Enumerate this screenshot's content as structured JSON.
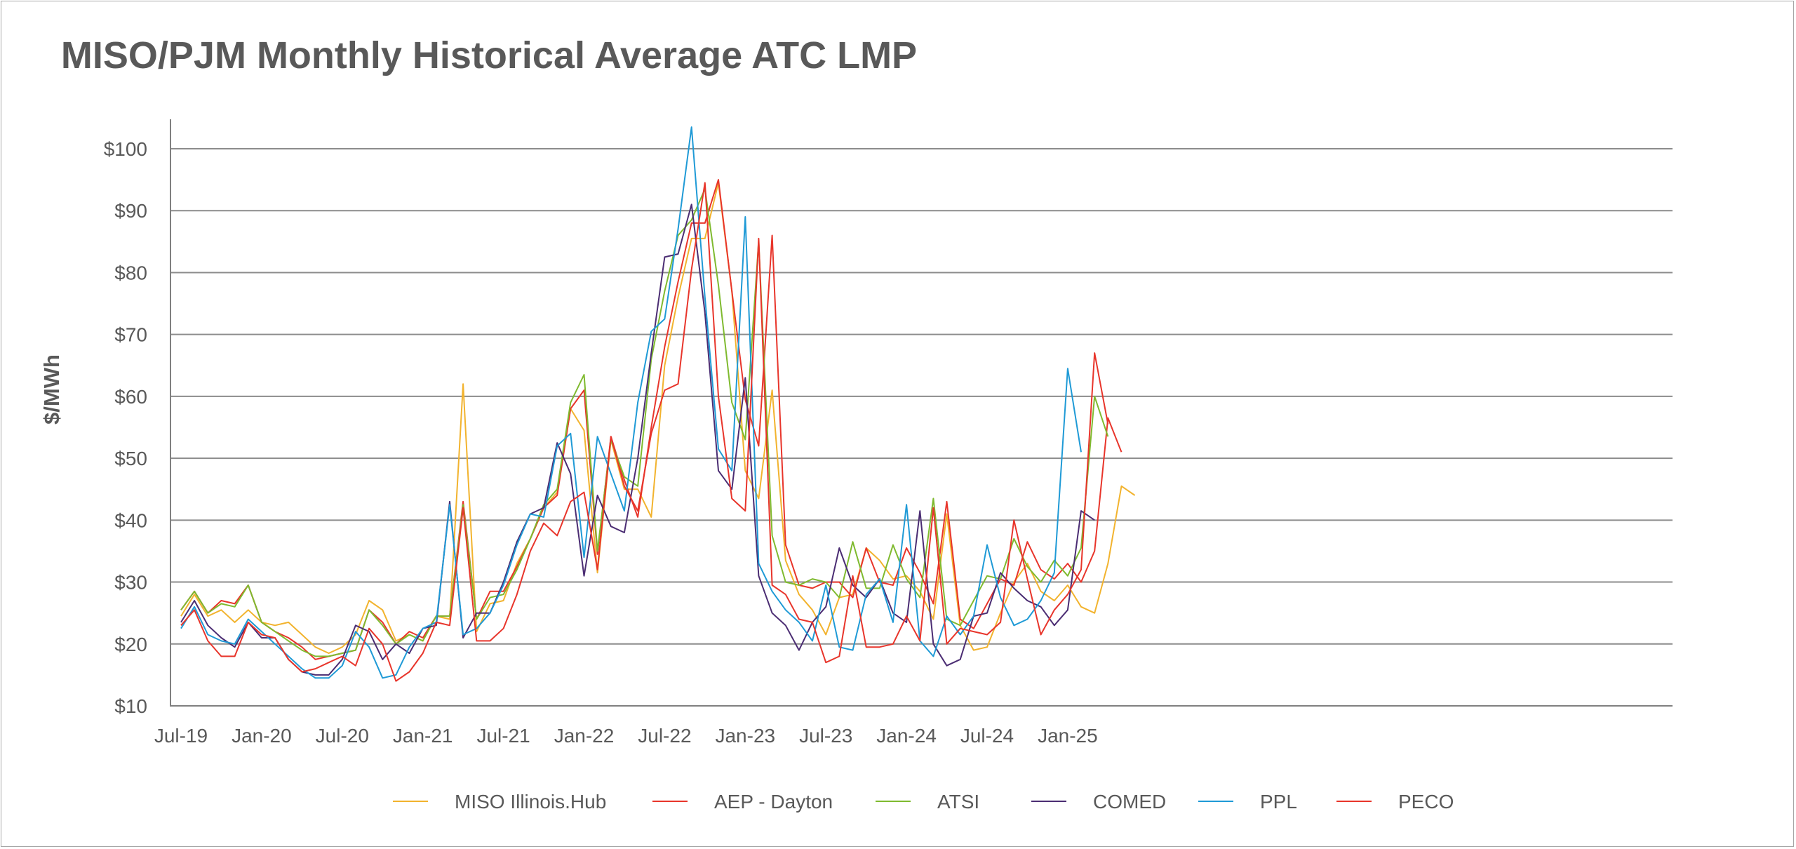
{
  "chart_data": {
    "type": "line",
    "title": "MISO/PJM Monthly Historical Average ATC LMP",
    "ylabel": "$/MWh",
    "xlabel": "",
    "ylim": [
      10,
      105
    ],
    "yticks": [
      10,
      20,
      30,
      40,
      50,
      60,
      70,
      80,
      90,
      100
    ],
    "ytick_labels": [
      "$10",
      "$20",
      "$30",
      "$40",
      "$50",
      "$60",
      "$70",
      "$80",
      "$90",
      "$100"
    ],
    "xtick_labels": [
      "Jul-19",
      "Jan-20",
      "Jul-20",
      "Jan-21",
      "Jul-21",
      "Jan-22",
      "Jul-22",
      "Jan-23",
      "Jul-23",
      "Jan-24",
      "Jul-24",
      "Jan-25"
    ],
    "x_start": "Jul-19",
    "x_end": "Feb-25",
    "grid": true,
    "legend_position": "bottom",
    "series": [
      {
        "name": "MISO Illinois.Hub",
        "color": "#f2b32e",
        "values": [
          24.5,
          28.0,
          24.5,
          25.5,
          23.5,
          25.5,
          23.5,
          23.0,
          23.5,
          21.5,
          19.5,
          18.5,
          19.5,
          21.5,
          27.0,
          25.5,
          20.5,
          21.5,
          20.5,
          24.5,
          24.0,
          62.0,
          22.0,
          26.5,
          27.0,
          33.0,
          37.0,
          42.0,
          44.5,
          58.0,
          54.5,
          31.5,
          53.0,
          45.0,
          45.0,
          40.5,
          65.0,
          76.0,
          85.5,
          85.5,
          94.5,
          77.0,
          48.0,
          43.5,
          61.0,
          33.5,
          28.0,
          25.5,
          21.5,
          27.5,
          28.0,
          35.5,
          33.5,
          30.5,
          31.0,
          28.5,
          24.0,
          41.0,
          23.0,
          19.0,
          19.5,
          25.0,
          30.0,
          33.0,
          28.5,
          27.0,
          29.5,
          26.0,
          25.0,
          33.0,
          45.5,
          44.0
        ]
      },
      {
        "name": "AEP - Dayton",
        "color": "#e8352b",
        "values": [
          25.5,
          28.5,
          25.0,
          27.0,
          26.5,
          29.5,
          23.5,
          22.0,
          21.0,
          19.5,
          17.5,
          18.0,
          18.5,
          19.0,
          25.5,
          23.5,
          20.0,
          22.0,
          21.0,
          24.5,
          24.5,
          43.0,
          24.0,
          28.5,
          28.5,
          32.5,
          37.0,
          42.0,
          44.0,
          58.0,
          61.0,
          34.5,
          53.5,
          46.5,
          40.5,
          55.0,
          68.0,
          78.5,
          88.0,
          88.0,
          95.0,
          77.0,
          59.5,
          52.0,
          86.0,
          36.0,
          29.5,
          29.0,
          30.0,
          30.0,
          27.5,
          35.5,
          30.0,
          29.5,
          35.5,
          31.5,
          26.5,
          43.0,
          24.0,
          22.5,
          26.5,
          30.5,
          29.5,
          36.5,
          32.0,
          30.5,
          33.0,
          30.0,
          35.0,
          56.5,
          51.0
        ]
      },
      {
        "name": "ATSI",
        "color": "#7fba2f",
        "values": [
          25.5,
          28.5,
          25.0,
          26.5,
          26.0,
          29.5,
          23.5,
          22.0,
          20.5,
          19.0,
          18.0,
          18.0,
          18.5,
          19.0,
          25.5,
          23.0,
          20.0,
          21.5,
          20.5,
          24.5,
          24.5,
          42.5,
          24.0,
          27.5,
          28.0,
          32.0,
          37.0,
          42.5,
          45.0,
          59.0,
          63.5,
          35.0,
          53.0,
          47.0,
          45.5,
          66.0,
          77.0,
          86.0,
          88.5,
          93.5,
          78.0,
          59.0,
          53.0,
          85.0,
          37.5,
          30.0,
          29.5,
          30.5,
          30.0,
          27.5,
          36.5,
          29.0,
          29.0,
          36.0,
          30.5,
          27.5,
          43.5,
          24.0,
          23.0,
          27.0,
          31.0,
          30.5,
          37.0,
          32.5,
          30.0,
          33.5,
          31.0,
          35.5,
          60.0,
          53.5
        ]
      },
      {
        "name": "COMED",
        "color": "#4b2d73",
        "values": [
          23.5,
          27.0,
          23.0,
          21.0,
          19.5,
          23.5,
          21.0,
          21.0,
          17.5,
          15.5,
          15.0,
          15.0,
          17.5,
          23.0,
          22.0,
          17.5,
          20.0,
          18.5,
          22.5,
          23.0,
          43.0,
          21.0,
          25.0,
          25.0,
          30.0,
          36.5,
          41.0,
          42.0,
          52.5,
          47.5,
          31.0,
          44.0,
          39.0,
          38.0,
          50.0,
          67.0,
          82.5,
          83.0,
          91.0,
          73.5,
          48.0,
          45.0,
          63.0,
          31.0,
          25.0,
          23.0,
          19.0,
          23.5,
          26.0,
          35.5,
          29.5,
          27.5,
          30.5,
          25.0,
          23.5,
          41.5,
          20.0,
          16.5,
          17.5,
          24.5,
          25.0,
          31.5,
          29.0,
          27.0,
          26.0,
          23.0,
          25.5,
          41.5,
          40.0
        ]
      },
      {
        "name": "PPL",
        "color": "#1f9ad6",
        "values": [
          22.5,
          26.0,
          21.5,
          20.5,
          20.0,
          24.0,
          22.0,
          20.0,
          18.0,
          16.0,
          14.5,
          14.5,
          16.5,
          22.0,
          19.5,
          14.5,
          15.0,
          19.5,
          22.5,
          23.5,
          42.5,
          21.5,
          22.5,
          25.0,
          29.5,
          36.0,
          41.0,
          40.5,
          52.0,
          54.0,
          34.0,
          53.5,
          47.5,
          41.5,
          59.0,
          70.5,
          72.5,
          87.0,
          103.5,
          76.0,
          51.5,
          48.0,
          89.0,
          33.0,
          28.5,
          25.5,
          23.5,
          20.5,
          29.5,
          19.5,
          19.0,
          28.0,
          30.5,
          23.5,
          42.5,
          20.5,
          18.0,
          24.5,
          21.5,
          24.5,
          36.0,
          27.5,
          23.0,
          24.0,
          27.0,
          31.5,
          64.5,
          51.0
        ]
      },
      {
        "name": "PECO",
        "color": "#e8352b",
        "values": [
          23.0,
          25.5,
          20.5,
          18.0,
          18.0,
          23.5,
          21.5,
          21.0,
          17.5,
          15.5,
          16.0,
          17.0,
          18.0,
          16.5,
          22.5,
          20.0,
          14.0,
          15.5,
          18.5,
          23.5,
          23.0,
          42.0,
          20.5,
          20.5,
          22.5,
          28.0,
          35.0,
          39.5,
          37.5,
          43.0,
          44.5,
          32.0,
          53.5,
          45.5,
          41.5,
          54.0,
          61.0,
          62.0,
          80.5,
          94.5,
          60.0,
          43.5,
          41.5,
          85.5,
          29.5,
          28.0,
          24.0,
          23.5,
          17.0,
          18.0,
          31.0,
          19.5,
          19.5,
          20.0,
          24.5,
          20.5,
          42.0,
          20.0,
          22.5,
          22.0,
          21.5,
          23.5,
          40.0,
          30.5,
          21.5,
          25.5,
          28.0,
          32.0,
          67.0,
          55.5
        ]
      }
    ]
  }
}
